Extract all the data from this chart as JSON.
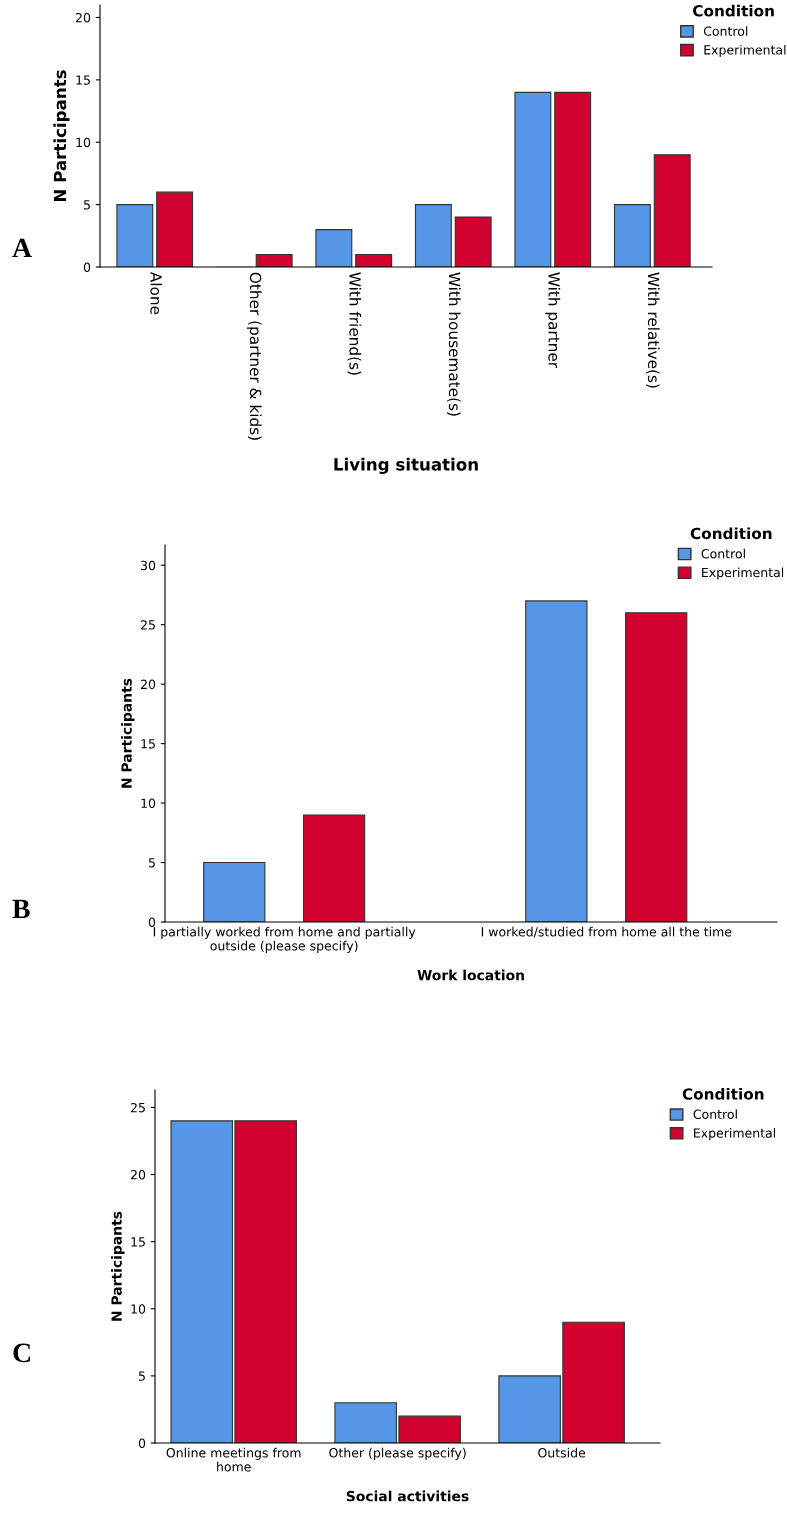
{
  "chart_data": [
    {
      "type": "bar",
      "xlabel": "Living situation",
      "ylabel": "N Participants",
      "legend_title": "Condition",
      "annotations": [
        "A"
      ],
      "categories": [
        "Alone",
        "Other (partner & kids)",
        "With friend(s)",
        "With housemate(s)",
        "With partner",
        "With relative(s)"
      ],
      "series": [
        {
          "name": "Control",
          "color": "#5596e6",
          "values": [
            5,
            0,
            3,
            5,
            14,
            5
          ]
        },
        {
          "name": "Experimental",
          "color": "#d1002f",
          "values": [
            6,
            1,
            1,
            4,
            14,
            9
          ]
        }
      ],
      "ylim": [
        0,
        21
      ],
      "yticks": [
        0,
        5,
        10,
        15,
        20
      ],
      "grid": false,
      "legend": "top right"
    },
    {
      "type": "bar",
      "xlabel": "Work location",
      "ylabel": "N Participants",
      "legend_title": "Condition",
      "annotations": [
        "B"
      ],
      "categories": [
        "I partially worked from home and partially\noutside (please specify)",
        "I worked/studied from home all the time"
      ],
      "series": [
        {
          "name": "Control",
          "color": "#5596e6",
          "values": [
            5,
            27
          ]
        },
        {
          "name": "Experimental",
          "color": "#d1002f",
          "values": [
            9,
            26
          ]
        }
      ],
      "ylim": [
        0,
        31.7
      ],
      "yticks": [
        0,
        5,
        10,
        15,
        20,
        25,
        30
      ],
      "grid": false,
      "legend": "top right"
    },
    {
      "type": "bar",
      "xlabel": "Social activities",
      "ylabel": "N Participants",
      "legend_title": "Condition",
      "annotations": [
        "C"
      ],
      "categories": [
        "Online meetings from\nhome",
        "Other (please specify)",
        "Outside"
      ],
      "series": [
        {
          "name": "Control",
          "color": "#5596e6",
          "values": [
            24,
            3,
            5
          ]
        },
        {
          "name": "Experimental",
          "color": "#d1002f",
          "values": [
            24,
            2,
            9
          ]
        }
      ],
      "ylim": [
        0,
        26.3
      ],
      "yticks": [
        0,
        5,
        10,
        15,
        20,
        25
      ],
      "grid": false,
      "legend": "top right"
    }
  ]
}
